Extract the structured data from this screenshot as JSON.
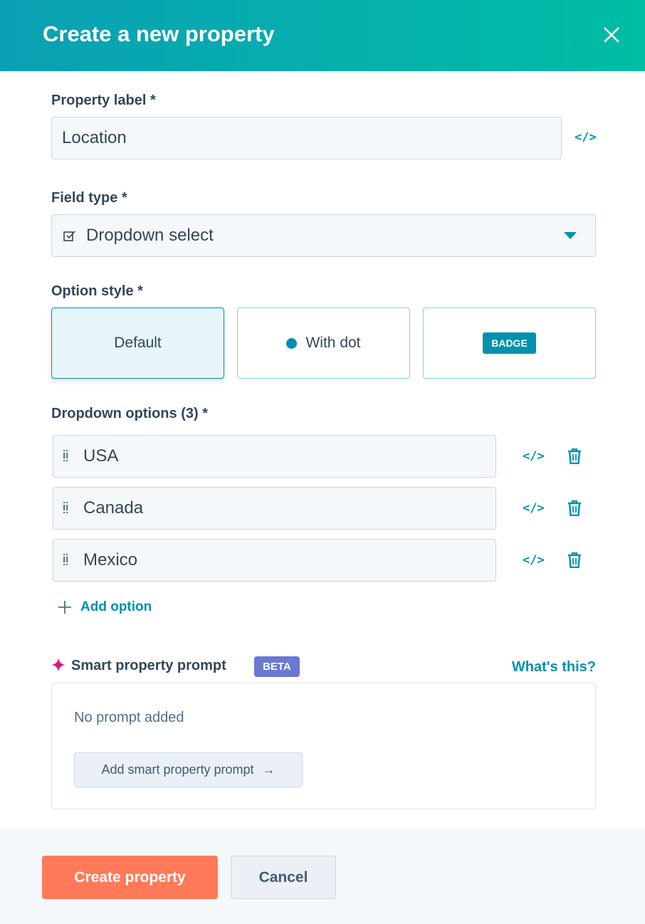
{
  "dialog": {
    "title": "Create a new property"
  },
  "property_label": {
    "label": "Property label *",
    "value": "Location"
  },
  "field_type": {
    "label": "Field type *",
    "value": "Dropdown select"
  },
  "option_style": {
    "label": "Option style *",
    "options": [
      "Default",
      "With dot",
      "BADGE"
    ],
    "selected": "Default"
  },
  "dropdown_options": {
    "label": "Dropdown options (3) *",
    "items": [
      "USA",
      "Canada",
      "Mexico"
    ],
    "add_label": "Add option"
  },
  "smart_prompt": {
    "label": "Smart property prompt",
    "badge": "BETA",
    "help_link": "What's this?",
    "empty_text": "No prompt added",
    "add_button": "Add smart property prompt"
  },
  "footer": {
    "create": "Create property",
    "cancel": "Cancel"
  },
  "code_icon_text": "</>",
  "colors": {
    "accent": "#0091ae",
    "primary_button": "#ff7a59",
    "beta_badge": "#6a78d1",
    "sparkle": "#d6197f"
  }
}
